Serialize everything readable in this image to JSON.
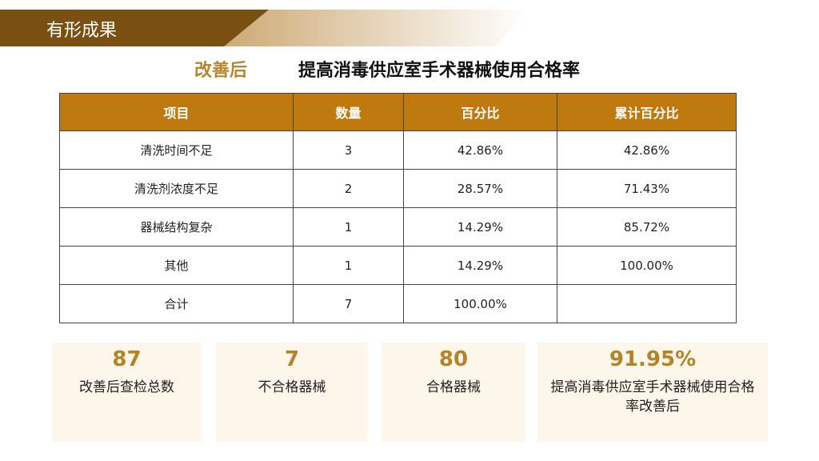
{
  "header": {
    "title": "有形成果"
  },
  "subtitle": {
    "tag": "改善后",
    "text": "提高消毒供应室手术器械使用合格率"
  },
  "table": {
    "columns": [
      "项目",
      "数量",
      "百分比",
      "累计百分比"
    ],
    "rows": [
      [
        "清洗时间不足",
        "3",
        "42.86%",
        "42.86%"
      ],
      [
        "清洗剂浓度不足",
        "2",
        "28.57%",
        "71.43%"
      ],
      [
        "器械结构复杂",
        "1",
        "14.29%",
        "85.72%"
      ],
      [
        "其他",
        "1",
        "14.29%",
        "100.00%"
      ],
      [
        "合计",
        "7",
        "100.00%"
      ]
    ]
  },
  "cards": [
    {
      "value": "87",
      "label": "改善后查检总数"
    },
    {
      "value": "7",
      "label": "不合格器械"
    },
    {
      "value": "80",
      "label": "合格器械"
    },
    {
      "value": "91.95%",
      "label": "提高消毒供应室手术器械使用合格率改善后"
    }
  ]
}
